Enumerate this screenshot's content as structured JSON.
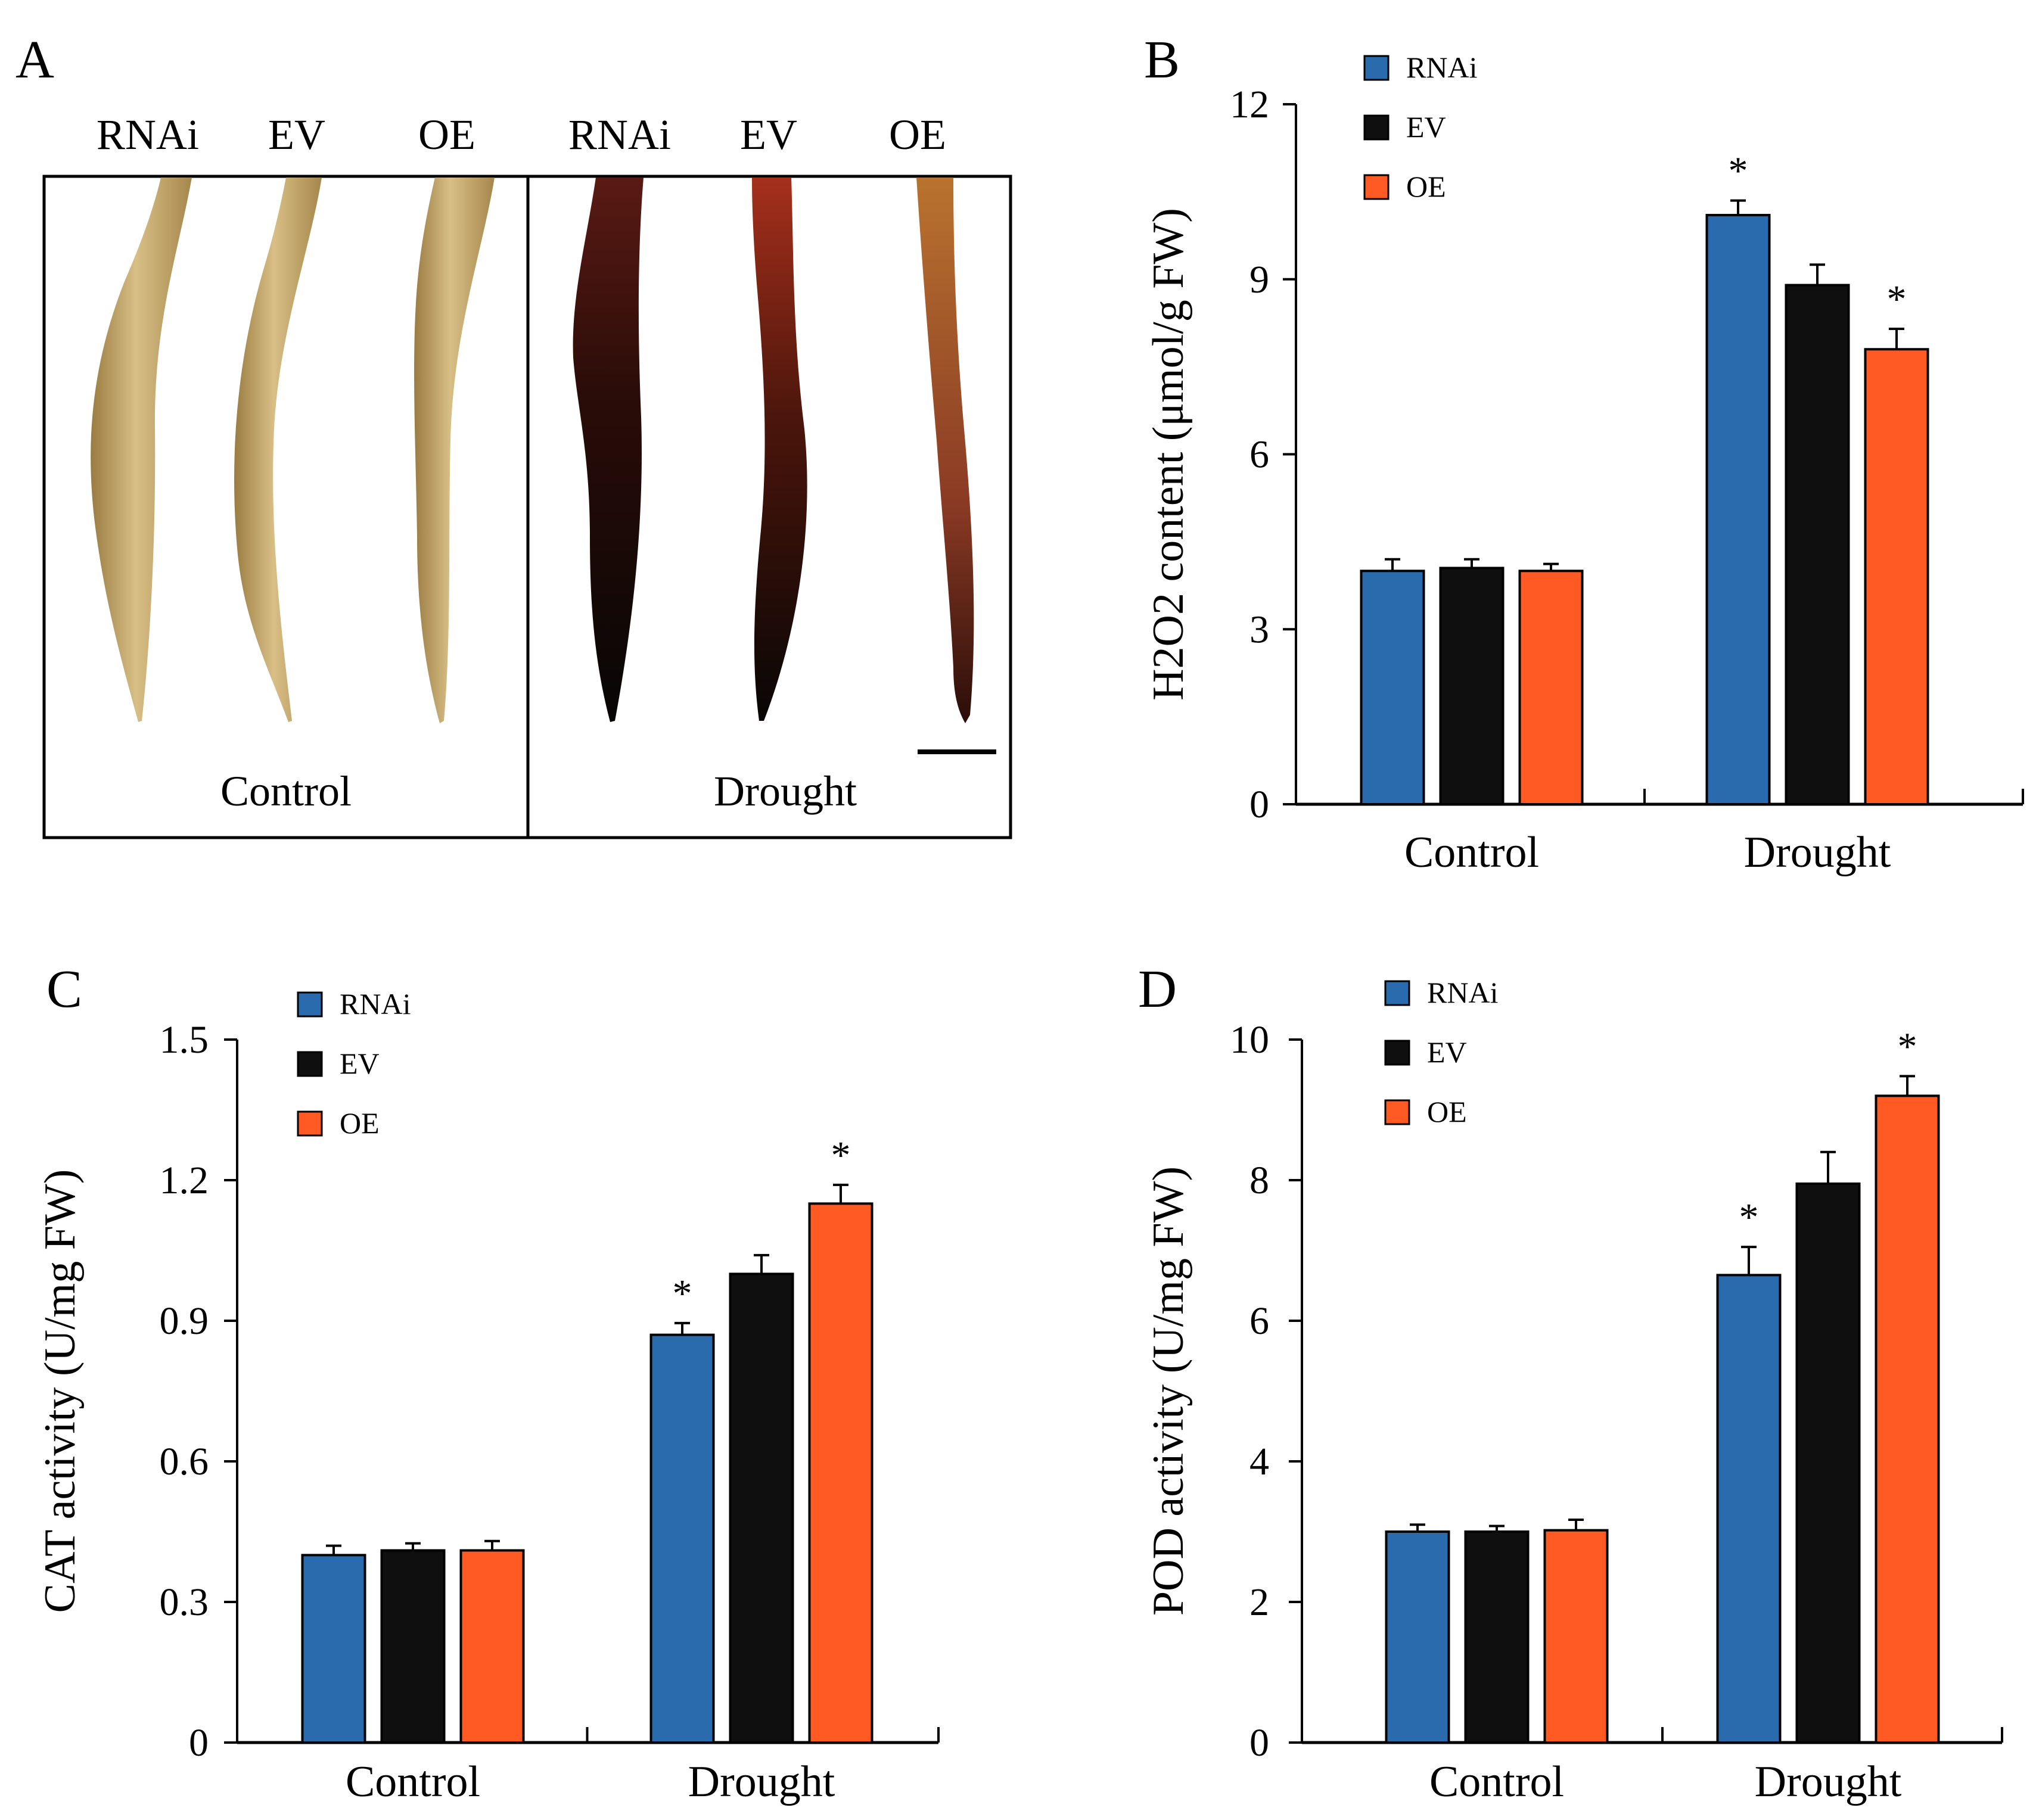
{
  "colors": {
    "RNAi": "#2a6bad",
    "EV": "#0f0f0f",
    "OE": "#ff5a24"
  },
  "panel_a": {
    "letter": "A",
    "genotypes_control": [
      "RNAi",
      "EV",
      "OE"
    ],
    "genotypes_drought": [
      "RNAi",
      "EV",
      "OE"
    ],
    "condition_control": "Control",
    "condition_drought": "Drought"
  },
  "chart_data": [
    {
      "id": "B",
      "letter": "B",
      "type": "bar",
      "ylabel": "H2O2 content (μmol/g FW)",
      "categories": [
        "Control",
        "Drought"
      ],
      "ylim": [
        0,
        12
      ],
      "yticks": [
        0,
        3,
        6,
        9,
        12
      ],
      "tick_labels": [
        "0",
        "3",
        "6",
        "9",
        "12"
      ],
      "legend": [
        "RNAi",
        "EV",
        "OE"
      ],
      "series": [
        {
          "name": "RNAi",
          "values": [
            4.0,
            10.1
          ],
          "errors": [
            0.2,
            0.25
          ],
          "sig": [
            "",
            "*"
          ]
        },
        {
          "name": "EV",
          "values": [
            4.05,
            8.9
          ],
          "errors": [
            0.15,
            0.35
          ],
          "sig": [
            "",
            ""
          ]
        },
        {
          "name": "OE",
          "values": [
            4.0,
            7.8
          ],
          "errors": [
            0.12,
            0.35
          ],
          "sig": [
            "",
            "*"
          ]
        }
      ]
    },
    {
      "id": "C",
      "letter": "C",
      "type": "bar",
      "ylabel": "CAT activity (U/mg FW)",
      "categories": [
        "Control",
        "Drought"
      ],
      "ylim": [
        0,
        1.5
      ],
      "yticks": [
        0,
        0.3,
        0.6,
        0.9,
        1.2,
        1.5
      ],
      "tick_labels": [
        "0",
        "0.3",
        "0.6",
        "0.9",
        "1.2",
        "1.5"
      ],
      "legend": [
        "RNAi",
        "EV",
        "OE"
      ],
      "series": [
        {
          "name": "RNAi",
          "values": [
            0.4,
            0.87
          ],
          "errors": [
            0.02,
            0.025
          ],
          "sig": [
            "",
            "*"
          ]
        },
        {
          "name": "EV",
          "values": [
            0.41,
            1.0
          ],
          "errors": [
            0.015,
            0.04
          ],
          "sig": [
            "",
            ""
          ]
        },
        {
          "name": "OE",
          "values": [
            0.41,
            1.15
          ],
          "errors": [
            0.02,
            0.04
          ],
          "sig": [
            "",
            "*"
          ]
        }
      ]
    },
    {
      "id": "D",
      "letter": "D",
      "type": "bar",
      "ylabel": "POD activity (U/mg FW)",
      "categories": [
        "Control",
        "Drought"
      ],
      "ylim": [
        0,
        10
      ],
      "yticks": [
        0,
        2,
        4,
        6,
        8,
        10
      ],
      "tick_labels": [
        "0",
        "2",
        "4",
        "6",
        "8",
        "10"
      ],
      "legend": [
        "RNAi",
        "EV",
        "OE"
      ],
      "series": [
        {
          "name": "RNAi",
          "values": [
            3.0,
            6.65
          ],
          "errors": [
            0.1,
            0.4
          ],
          "sig": [
            "",
            "*"
          ]
        },
        {
          "name": "EV",
          "values": [
            3.0,
            7.95
          ],
          "errors": [
            0.08,
            0.45
          ],
          "sig": [
            "",
            ""
          ]
        },
        {
          "name": "OE",
          "values": [
            3.02,
            9.2
          ],
          "errors": [
            0.15,
            0.28
          ],
          "sig": [
            "",
            "*"
          ]
        }
      ]
    }
  ]
}
